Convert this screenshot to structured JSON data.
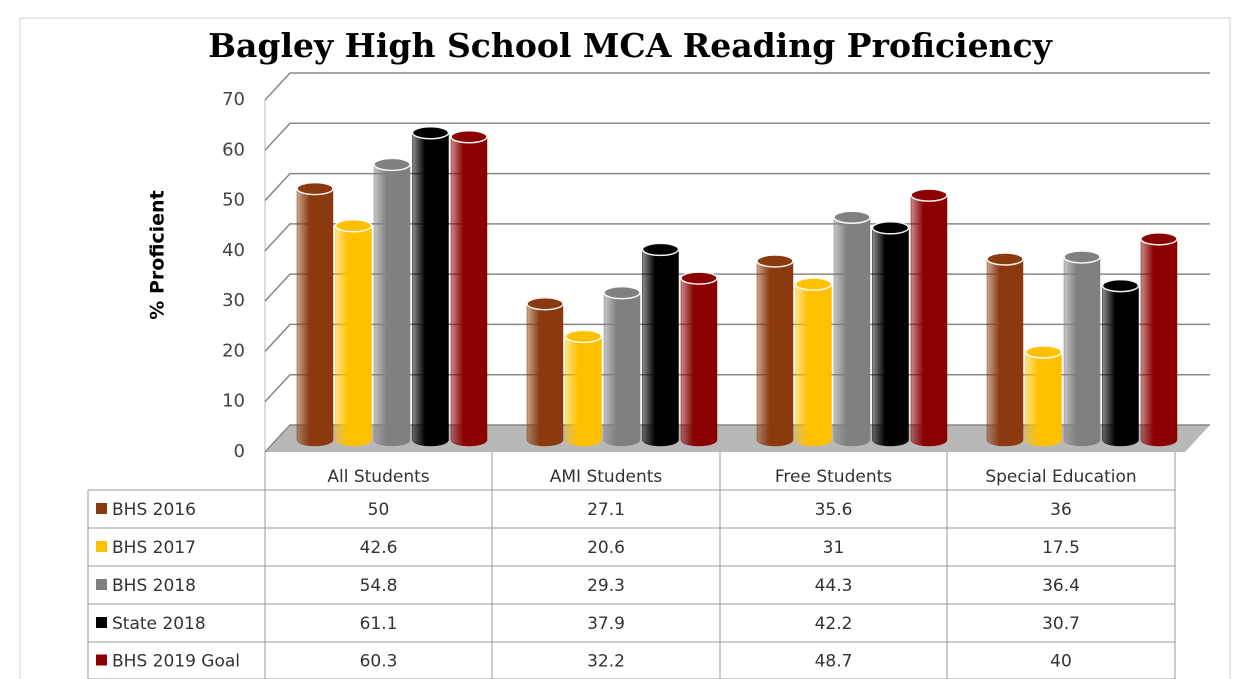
{
  "chart_data": {
    "type": "bar",
    "title": "Bagley High School MCA Reading Proficiency",
    "y_label": "% Proficient",
    "categories": [
      "All Students",
      "AMI Students",
      "Free Students",
      "Special Education"
    ],
    "series": [
      {
        "name": "BHS 2016",
        "color": "#8b3a0f",
        "values": [
          50,
          27.1,
          35.6,
          36
        ]
      },
      {
        "name": "BHS 2017",
        "color": "#ffc000",
        "values": [
          42.6,
          20.6,
          31,
          17.5
        ]
      },
      {
        "name": "BHS 2018",
        "color": "#808080",
        "values": [
          54.8,
          29.3,
          44.3,
          36.4
        ]
      },
      {
        "name": "State 2018",
        "color": "#000000",
        "values": [
          61.1,
          37.9,
          42.2,
          30.7
        ]
      },
      {
        "name": "BHS 2019 Goal",
        "color": "#8b0000",
        "values": [
          60.3,
          32.2,
          48.7,
          40
        ]
      }
    ],
    "ylim": [
      0,
      70
    ],
    "yticks": [
      0,
      10,
      20,
      30,
      40,
      50,
      60,
      70
    ],
    "grid": true
  }
}
